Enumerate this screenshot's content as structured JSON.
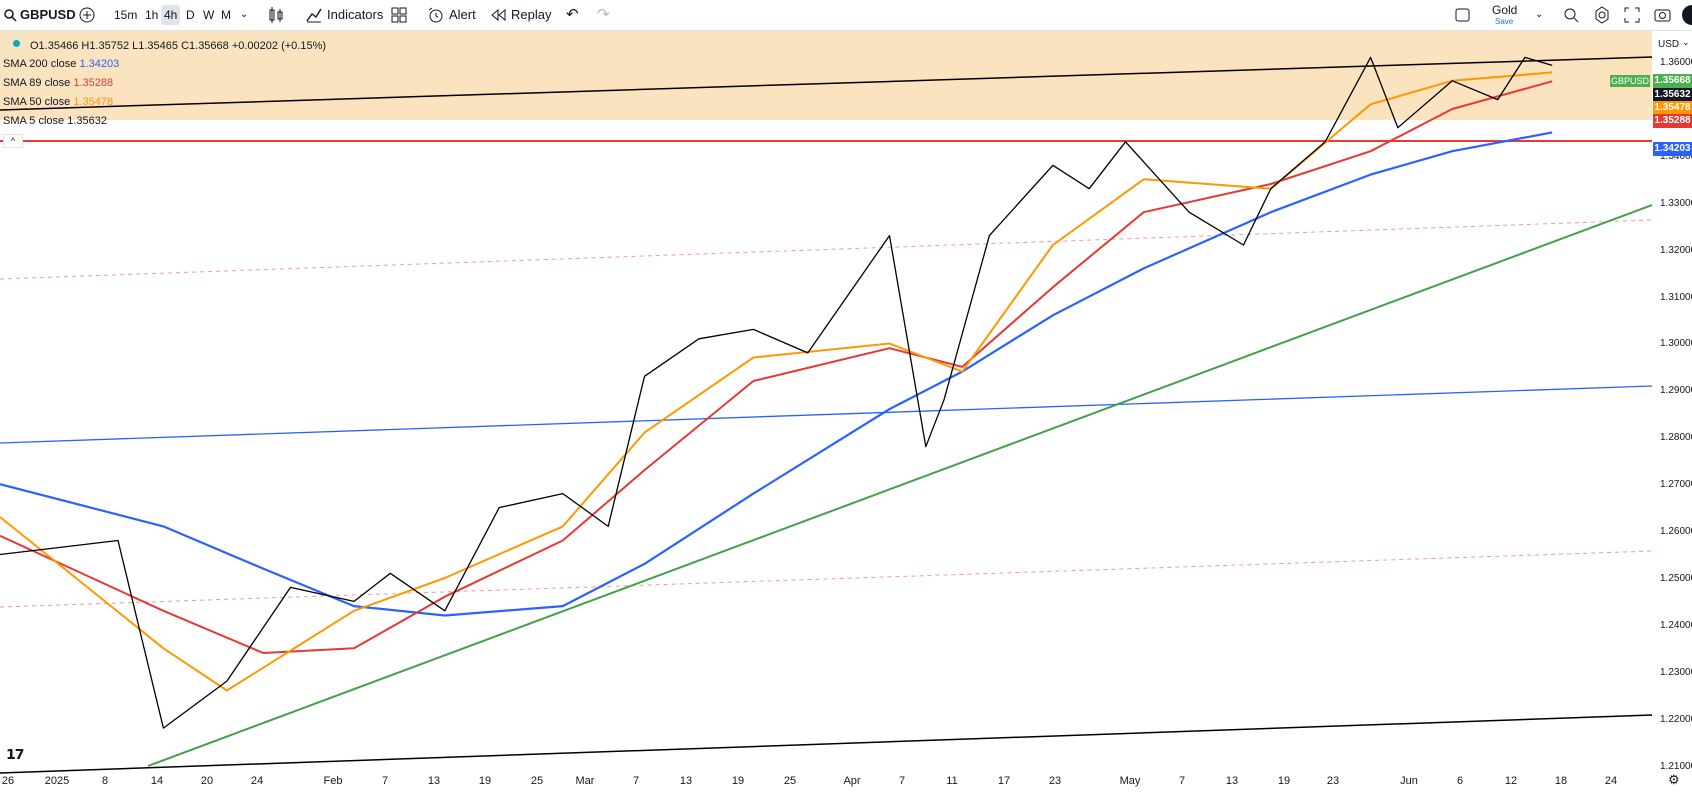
{
  "toolbar": {
    "symbol": "GBPUSD",
    "intervals": [
      "15m",
      "1h",
      "4h",
      "D",
      "W",
      "M"
    ],
    "active_interval": "4h",
    "indicators_label": "Indicators",
    "alert_label": "Alert",
    "replay_label": "Replay",
    "layout_name": "Gold",
    "layout_sub": "Save"
  },
  "legend": {
    "ohlc": "O1.35466 H1.35752 L1.35465 C1.35668 +0.00202 (+0.15%)",
    "sma200_label": "SMA 200 close",
    "sma200_value": "1.34203",
    "sma89_label": "SMA 89 close",
    "sma89_value": "1.35288",
    "sma50_label": "SMA 50 close",
    "sma50_value": "1.35478",
    "sma5_label": "SMA 5 close",
    "sma5_value": "1.35632"
  },
  "colors": {
    "sma200": "#2962ff",
    "sma89": "#e53935",
    "sma50": "#ff9800",
    "sma5": "#000000",
    "zone": "#fbe0b8",
    "support_trend": "#43a047",
    "resistance_line": "#e53935"
  },
  "price_scale": {
    "currency": "USD",
    "ticks": [
      "1.36000",
      "1.35000",
      "1.34000",
      "1.33000",
      "1.32000",
      "1.31000",
      "1.30000",
      "1.29000",
      "1.28000",
      "1.27000",
      "1.26000",
      "1.25000",
      "1.24000",
      "1.23000",
      "1.22000",
      "1.21000"
    ],
    "badges": {
      "symbol": "GBPUSD",
      "last": "1.35668",
      "sma5": "1.35632",
      "sma50": "1.35478",
      "sma89": "1.35288",
      "sma200": "1.34203"
    }
  },
  "time_axis": [
    "26",
    "2025",
    "8",
    "14",
    "20",
    "24",
    "Feb",
    "7",
    "13",
    "19",
    "25",
    "Mar",
    "7",
    "13",
    "19",
    "25",
    "Apr",
    "7",
    "11",
    "17",
    "23",
    "May",
    "7",
    "13",
    "19",
    "23",
    "Jun",
    "6",
    "12",
    "18",
    "24"
  ],
  "chart_data": {
    "type": "line",
    "ylim": [
      1.21,
      1.365
    ],
    "x_range": [
      "2024-12-26",
      "2025-06-26"
    ],
    "series": [
      {
        "name": "SMA 5 close",
        "x": [
          "2024-12-26",
          "2025-01-08",
          "2025-01-13",
          "2025-01-20",
          "2025-01-27",
          "2025-02-03",
          "2025-02-07",
          "2025-02-13",
          "2025-02-19",
          "2025-02-26",
          "2025-03-03",
          "2025-03-07",
          "2025-03-13",
          "2025-03-19",
          "2025-03-25",
          "2025-04-03",
          "2025-04-07",
          "2025-04-09",
          "2025-04-14",
          "2025-04-21",
          "2025-04-25",
          "2025-04-29",
          "2025-05-06",
          "2025-05-12",
          "2025-05-15",
          "2025-05-21",
          "2025-05-26",
          "2025-05-29",
          "2025-06-04",
          "2025-06-09",
          "2025-06-12",
          "2025-06-15"
        ],
        "values": [
          1.252,
          1.255,
          1.215,
          1.225,
          1.245,
          1.242,
          1.248,
          1.24,
          1.262,
          1.265,
          1.258,
          1.29,
          1.298,
          1.3,
          1.295,
          1.32,
          1.275,
          1.285,
          1.32,
          1.335,
          1.33,
          1.34,
          1.325,
          1.318,
          1.33,
          1.34,
          1.358,
          1.343,
          1.353,
          1.349,
          1.358,
          1.3563
        ]
      },
      {
        "name": "SMA 50 close",
        "x": [
          "2024-12-26",
          "2025-01-13",
          "2025-01-20",
          "2025-02-03",
          "2025-02-13",
          "2025-02-26",
          "2025-03-07",
          "2025-03-19",
          "2025-04-03",
          "2025-04-11",
          "2025-04-21",
          "2025-05-01",
          "2025-05-15",
          "2025-05-26",
          "2025-06-04",
          "2025-06-15"
        ],
        "values": [
          1.26,
          1.232,
          1.223,
          1.24,
          1.247,
          1.258,
          1.278,
          1.294,
          1.297,
          1.291,
          1.318,
          1.332,
          1.33,
          1.348,
          1.353,
          1.3548
        ]
      },
      {
        "name": "SMA 89 close",
        "x": [
          "2024-12-26",
          "2025-01-13",
          "2025-01-24",
          "2025-02-03",
          "2025-02-13",
          "2025-02-26",
          "2025-03-07",
          "2025-03-19",
          "2025-04-03",
          "2025-04-11",
          "2025-04-21",
          "2025-05-01",
          "2025-05-15",
          "2025-05-26",
          "2025-06-04",
          "2025-06-15"
        ],
        "values": [
          1.256,
          1.24,
          1.231,
          1.232,
          1.243,
          1.255,
          1.27,
          1.289,
          1.296,
          1.292,
          1.309,
          1.325,
          1.331,
          1.338,
          1.347,
          1.3529
        ]
      },
      {
        "name": "SMA 200 close",
        "x": [
          "2024-12-26",
          "2025-01-13",
          "2025-01-24",
          "2025-02-03",
          "2025-02-13",
          "2025-02-26",
          "2025-03-07",
          "2025-03-19",
          "2025-04-03",
          "2025-04-11",
          "2025-04-21",
          "2025-05-01",
          "2025-05-15",
          "2025-05-26",
          "2025-06-04",
          "2025-06-15"
        ],
        "values": [
          1.267,
          1.258,
          1.249,
          1.241,
          1.239,
          1.241,
          1.25,
          1.265,
          1.283,
          1.291,
          1.303,
          1.313,
          1.325,
          1.333,
          1.338,
          1.342
        ]
      }
    ]
  }
}
